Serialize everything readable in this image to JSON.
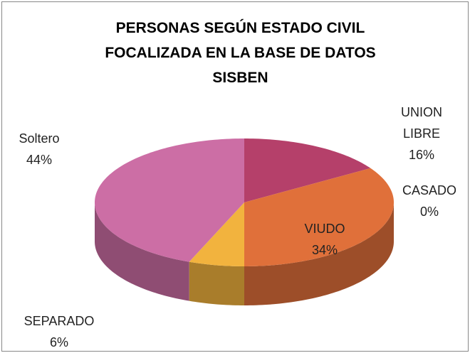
{
  "chart_data": {
    "type": "pie3d",
    "title": "PERSONAS SEGÚN ESTADO CIVIL FOCALIZADA EN LA BASE DE DATOS SISBEN",
    "categories": [
      "UNION LIBRE",
      "CASADO",
      "VIUDO",
      "SEPARADO",
      "Soltero"
    ],
    "values": [
      16,
      0,
      34,
      6,
      44
    ],
    "value_labels": [
      "16%",
      "0%",
      "34%",
      "6%",
      "44%"
    ],
    "colors": [
      "#b5406a",
      "#8b2a2a",
      "#e0703a",
      "#f2b33e",
      "#cc6ea5"
    ]
  }
}
